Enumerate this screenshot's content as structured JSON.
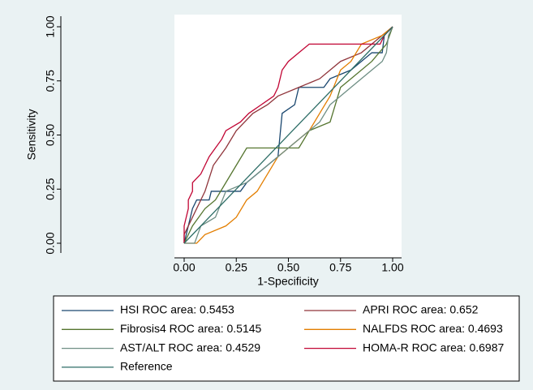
{
  "chart_data": {
    "type": "line",
    "xlabel": "1-Specificity",
    "ylabel": "Sensitivity",
    "xlim": [
      0,
      1
    ],
    "ylim": [
      0,
      1
    ],
    "xticks": [
      {
        "value": 0,
        "label": "0.00"
      },
      {
        "value": 0.25,
        "label": "0.25"
      },
      {
        "value": 0.5,
        "label": "0.50"
      },
      {
        "value": 0.75,
        "label": "0.75"
      },
      {
        "value": 1,
        "label": "1.00"
      }
    ],
    "yticks": [
      {
        "value": 0,
        "label": "0.00"
      },
      {
        "value": 0.25,
        "label": "0.25"
      },
      {
        "value": 0.5,
        "label": "0.50"
      },
      {
        "value": 0.75,
        "label": "0.75"
      },
      {
        "value": 1,
        "label": "1.00"
      }
    ],
    "series": [
      {
        "name": "HSI ROC area: 0.5453",
        "color": "#1a476f",
        "x": [
          0,
          0.04,
          0.06,
          0.12,
          0.13,
          0.27,
          0.3,
          0.4,
          0.45,
          0.47,
          0.53,
          0.55,
          0.67,
          0.7,
          0.8,
          0.9,
          0.95,
          0.96,
          1
        ],
        "values": [
          0,
          0.16,
          0.2,
          0.2,
          0.24,
          0.24,
          0.28,
          0.36,
          0.4,
          0.6,
          0.64,
          0.72,
          0.72,
          0.76,
          0.8,
          0.88,
          0.88,
          0.96,
          1
        ]
      },
      {
        "name": "APRI ROC area: 0.652",
        "color": "#90353b",
        "x": [
          0,
          0,
          0.04,
          0.1,
          0.14,
          0.2,
          0.25,
          0.33,
          0.4,
          0.45,
          0.55,
          0.65,
          0.75,
          0.85,
          0.95,
          1
        ],
        "values": [
          0,
          0.04,
          0.12,
          0.24,
          0.36,
          0.44,
          0.52,
          0.6,
          0.64,
          0.68,
          0.72,
          0.76,
          0.84,
          0.88,
          0.96,
          1
        ]
      },
      {
        "name": "Fibrosis4 ROC area: 0.5145",
        "color": "#55752f",
        "x": [
          0,
          0.04,
          0.1,
          0.15,
          0.2,
          0.25,
          0.3,
          0.55,
          0.6,
          0.7,
          0.75,
          0.8,
          0.9,
          0.97,
          1
        ],
        "values": [
          0,
          0.08,
          0.16,
          0.2,
          0.28,
          0.36,
          0.44,
          0.44,
          0.52,
          0.56,
          0.72,
          0.76,
          0.84,
          0.92,
          1
        ]
      },
      {
        "name": "NALFDS ROC area: 0.4693",
        "color": "#e37e00",
        "x": [
          0,
          0.06,
          0.1,
          0.2,
          0.25,
          0.3,
          0.35,
          0.4,
          0.45,
          0.5,
          0.6,
          0.65,
          0.7,
          0.75,
          0.8,
          0.85,
          0.95,
          1
        ],
        "values": [
          0,
          0,
          0.04,
          0.08,
          0.12,
          0.2,
          0.24,
          0.32,
          0.4,
          0.44,
          0.52,
          0.6,
          0.68,
          0.8,
          0.84,
          0.92,
          0.96,
          1
        ]
      },
      {
        "name": "AST/ALT ROC area: 0.4529",
        "color": "#6e8e84",
        "x": [
          0,
          0.05,
          0.08,
          0.15,
          0.2,
          0.3,
          0.35,
          0.4,
          0.45,
          0.5,
          0.6,
          0.65,
          0.7,
          0.75,
          0.8,
          0.9,
          0.95,
          0.97,
          0.98,
          1
        ],
        "values": [
          0,
          0,
          0.08,
          0.12,
          0.24,
          0.28,
          0.32,
          0.36,
          0.4,
          0.44,
          0.52,
          0.56,
          0.64,
          0.68,
          0.72,
          0.8,
          0.84,
          0.88,
          0.96,
          1
        ]
      },
      {
        "name": "HOMA-R ROC area: 0.6987",
        "color": "#c10534",
        "x": [
          0,
          0,
          0.02,
          0.02,
          0.04,
          0.04,
          0.08,
          0.1,
          0.12,
          0.15,
          0.18,
          0.2,
          0.27,
          0.31,
          0.37,
          0.43,
          0.45,
          0.47,
          0.5,
          0.55,
          0.6,
          0.94,
          0.96,
          1
        ],
        "values": [
          0,
          0.08,
          0.16,
          0.2,
          0.24,
          0.28,
          0.32,
          0.36,
          0.4,
          0.44,
          0.48,
          0.52,
          0.56,
          0.6,
          0.64,
          0.68,
          0.72,
          0.8,
          0.84,
          0.88,
          0.92,
          0.92,
          0.96,
          1
        ]
      },
      {
        "name": "Reference",
        "color": "#2d6d66",
        "x": [
          0,
          1
        ],
        "values": [
          0,
          1
        ]
      }
    ]
  }
}
